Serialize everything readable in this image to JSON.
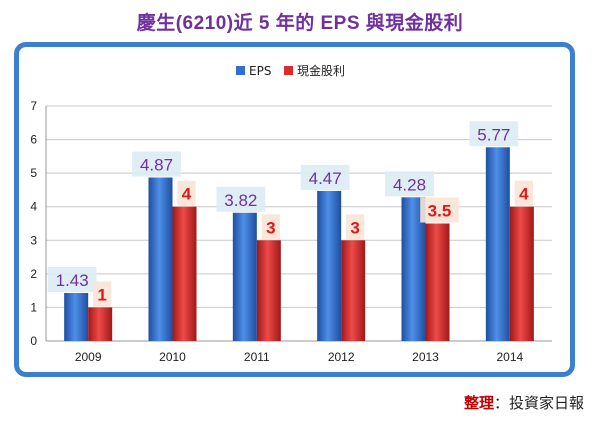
{
  "page_title": "慶生(6210)近 5 年的 EPS 與現金股利",
  "credit": {
    "label": "整理",
    "sep": "：",
    "value": "投資家日報"
  },
  "colors": {
    "eps": "#2e6fd0",
    "dividend": "#e02a2a",
    "eps_label": "#7030a0",
    "dividend_label": "#e01818",
    "frame": "#3a7fd0"
  },
  "chart_data": {
    "type": "bar",
    "title": "",
    "xlabel": "",
    "ylabel": "",
    "categories": [
      "2009",
      "2010",
      "2011",
      "2012",
      "2013",
      "2014"
    ],
    "series": [
      {
        "name": "EPS",
        "values": [
          1.43,
          4.87,
          3.82,
          4.47,
          4.28,
          5.77
        ],
        "labels": [
          "1.43",
          "4.87",
          "3.82",
          "4.47",
          "4.28",
          "5.77"
        ]
      },
      {
        "name": "現金股利",
        "values": [
          1,
          4,
          3,
          3,
          3.5,
          4
        ],
        "labels": [
          "1",
          "4",
          "3",
          "3",
          "3.5",
          "4"
        ]
      }
    ],
    "ylim": [
      0,
      7
    ],
    "yticks": [
      "0",
      "1",
      "2",
      "3",
      "4",
      "5",
      "6",
      "7"
    ],
    "grid": true,
    "legend": "top"
  }
}
